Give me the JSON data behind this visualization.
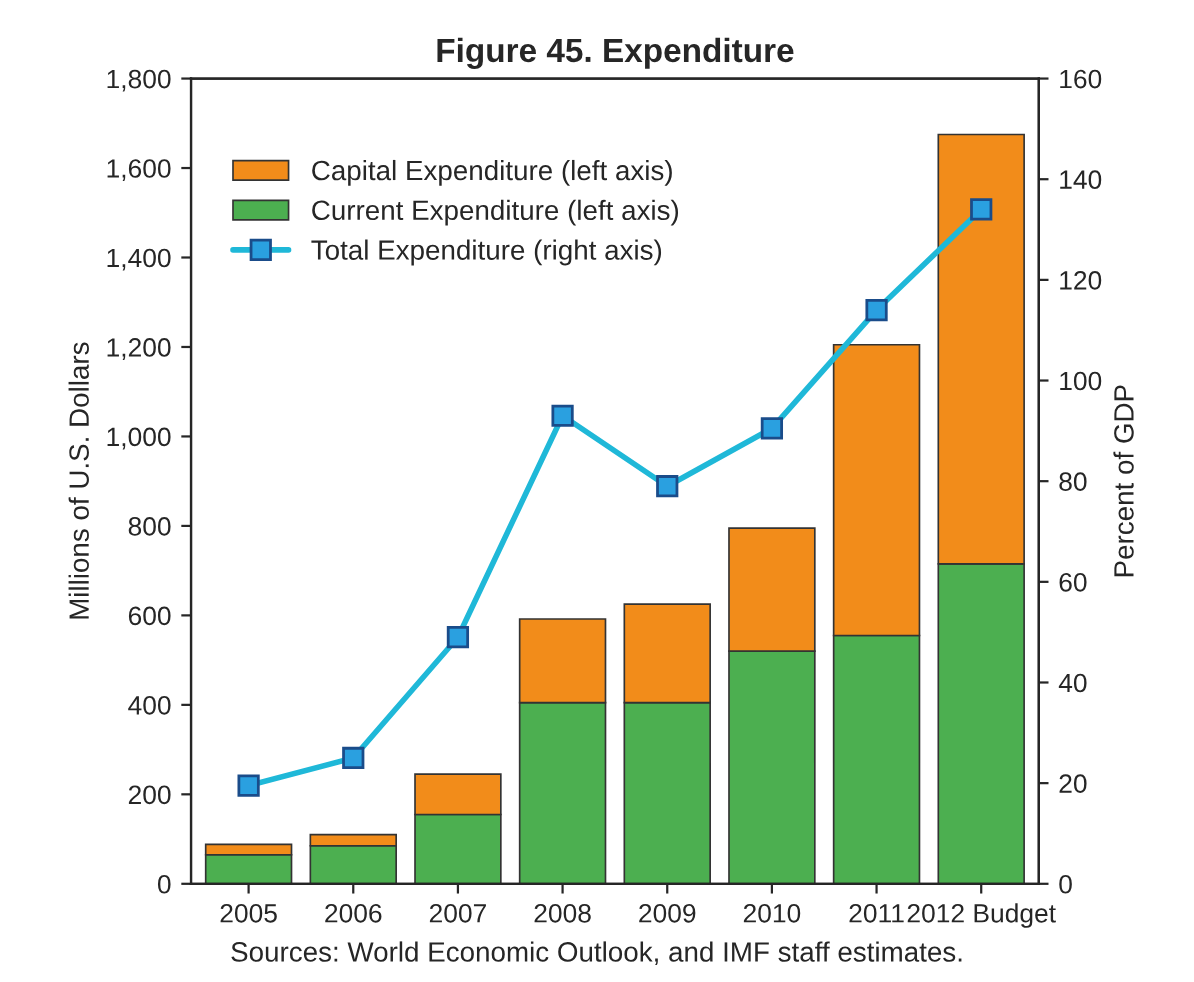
{
  "chart_data": {
    "type": "bar",
    "title": "Figure 45. Expenditure",
    "categories": [
      "2005",
      "2006",
      "2007",
      "2008",
      "2009",
      "2010",
      "2011",
      "2012 Budget"
    ],
    "stacked": true,
    "series": [
      {
        "name": "Current Expenditure (left axis)",
        "color": "#4caf50",
        "values": [
          65,
          85,
          155,
          405,
          405,
          520,
          555,
          715
        ]
      },
      {
        "name": "Capital Expenditure (left axis)",
        "color": "#f28c1a",
        "values": [
          23,
          25,
          90,
          187,
          220,
          275,
          650,
          960
        ]
      },
      {
        "name": "Total Expenditure (right axis)",
        "type": "line",
        "axis": "y2",
        "color": "#1fb8d8",
        "marker": "square",
        "values": [
          19.5,
          25,
          49,
          93,
          79,
          90.5,
          114,
          134
        ]
      }
    ],
    "ylabel": "Millions of U.S. Dollars",
    "y2label": "Percent of GDP",
    "ylim": [
      0,
      1800
    ],
    "yticks": [
      {
        "value": 0,
        "label": "0"
      },
      {
        "value": 200,
        "label": "200"
      },
      {
        "value": 400,
        "label": "400"
      },
      {
        "value": 600,
        "label": "600"
      },
      {
        "value": 800,
        "label": "800"
      },
      {
        "value": 1000,
        "label": "1,000"
      },
      {
        "value": 1200,
        "label": "1,200"
      },
      {
        "value": 1400,
        "label": "1,400"
      },
      {
        "value": 1600,
        "label": "1,600"
      },
      {
        "value": 1800,
        "label": "1,800"
      }
    ],
    "y2lim": [
      0,
      160
    ],
    "y2ticks": [
      0,
      20,
      40,
      60,
      80,
      100,
      120,
      140,
      160
    ],
    "legend": "top left",
    "grid": false,
    "annotations": [
      "Sources: World Economic Outlook, and IMF staff estimates."
    ]
  }
}
